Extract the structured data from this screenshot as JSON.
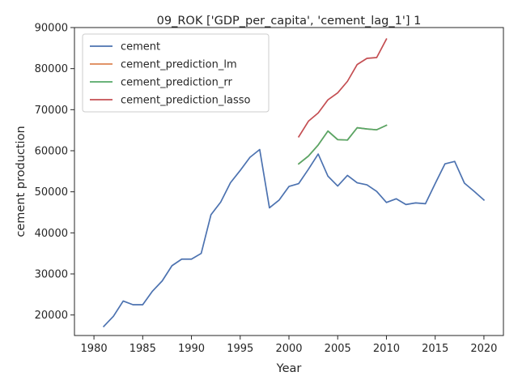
{
  "chart_data": {
    "type": "line",
    "title": "09_ROK ['GDP_per_capita', 'cement_lag_1'] 1",
    "xlabel": "Year",
    "ylabel": "cement production",
    "xlim": [
      1978,
      2022
    ],
    "ylim": [
      15000,
      90000
    ],
    "xticks": [
      1980,
      1985,
      1990,
      1995,
      2000,
      2005,
      2010,
      2015,
      2020
    ],
    "yticks": [
      20000,
      30000,
      40000,
      50000,
      60000,
      70000,
      80000,
      90000
    ],
    "grid": false,
    "legend_position": "top-left",
    "series": [
      {
        "name": "cement",
        "color": "#4c72b0",
        "x": [
          1981,
          1982,
          1983,
          1984,
          1985,
          1986,
          1987,
          1988,
          1989,
          1990,
          1991,
          1992,
          1993,
          1994,
          1995,
          1996,
          1997,
          1998,
          1999,
          2000,
          2001,
          2002,
          2003,
          2004,
          2005,
          2006,
          2007,
          2008,
          2009,
          2010,
          2011,
          2012,
          2013,
          2014,
          2015,
          2016,
          2017,
          2018,
          2019,
          2020
        ],
        "values": [
          17200,
          19700,
          23400,
          22500,
          22500,
          25800,
          28300,
          32000,
          33600,
          33600,
          35000,
          44400,
          47500,
          52200,
          55200,
          58400,
          60300,
          46100,
          48000,
          51300,
          52000,
          55500,
          59200,
          53800,
          51400,
          54000,
          52200,
          51700,
          50100,
          47400,
          48300,
          46900,
          47300,
          47100,
          52000,
          56800,
          57400,
          52100,
          50100,
          48000
        ]
      },
      {
        "name": "cement_prediction_lm",
        "color": "#dd8452",
        "x": [
          2001,
          2002,
          2003,
          2004,
          2005,
          2006,
          2007,
          2008,
          2009,
          2010
        ],
        "values": [
          56800,
          58700,
          61400,
          64800,
          62700,
          62600,
          65600,
          65300,
          65100,
          66200
        ]
      },
      {
        "name": "cement_prediction_rr",
        "color": "#55a868",
        "x": [
          2001,
          2002,
          2003,
          2004,
          2005,
          2006,
          2007,
          2008,
          2009,
          2010
        ],
        "values": [
          56800,
          58700,
          61400,
          64800,
          62700,
          62600,
          65600,
          65300,
          65100,
          66200
        ]
      },
      {
        "name": "cement_prediction_lasso",
        "color": "#c44e52",
        "x": [
          2001,
          2002,
          2003,
          2004,
          2005,
          2006,
          2007,
          2008,
          2009,
          2010
        ],
        "values": [
          63400,
          67200,
          69200,
          72400,
          74100,
          76900,
          81000,
          82500,
          82700,
          87200
        ]
      }
    ]
  }
}
